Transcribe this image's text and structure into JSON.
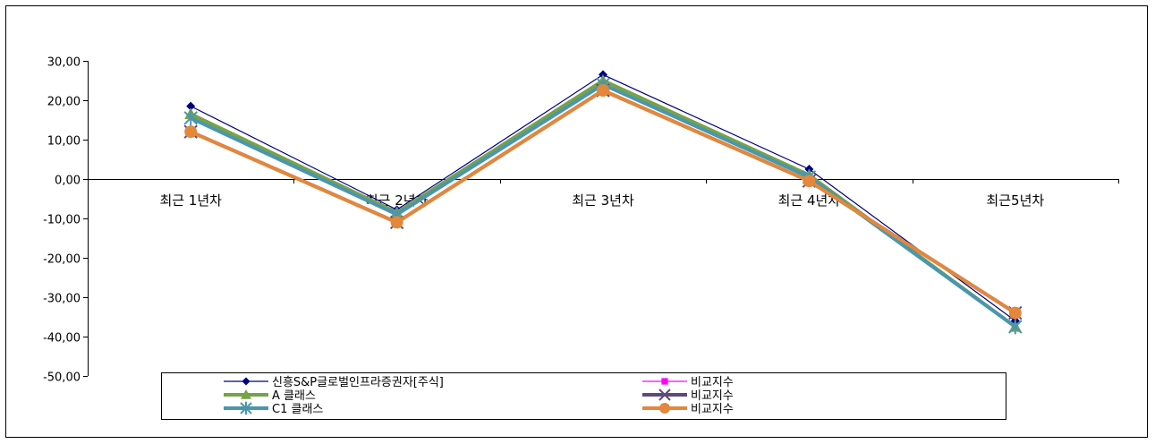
{
  "chart_data": {
    "type": "line",
    "categories": [
      "최근 1년차",
      "최근 2년차",
      "최근 3년차",
      "최근 4년차",
      "최근5년차"
    ],
    "ylim": [
      -50,
      30
    ],
    "yticks": [
      30,
      20,
      10,
      0,
      -10,
      -20,
      -30,
      -40,
      -50
    ],
    "ytick_labels": [
      "30,00",
      "20,00",
      "10,00",
      "0,00",
      "-10,00",
      "-20,00",
      "-30,00",
      "-40,00",
      "-50,00"
    ],
    "grid": false,
    "legend_position": "bottom",
    "series": [
      {
        "name": "신흥S&P글로벌인프라증권자[주식]",
        "color": "#000080",
        "marker": "diamond",
        "width": 1.2,
        "values": [
          18.5,
          -7.8,
          26.5,
          2.5,
          -36.0
        ]
      },
      {
        "name": "비교지수",
        "color": "#ff00ff",
        "marker": "square",
        "width": 1.2,
        "values": [
          12.0,
          -11.0,
          22.5,
          -0.5,
          -34.0
        ]
      },
      {
        "name": "A 클래스",
        "color": "#77a347",
        "marker": "triangle",
        "width": 4,
        "values": [
          16.5,
          -8.5,
          25.0,
          1.0,
          -37.5
        ]
      },
      {
        "name": "비교지수",
        "color": "#604a7b",
        "marker": "x",
        "width": 4,
        "values": [
          12.0,
          -11.0,
          22.5,
          -0.5,
          -34.0
        ]
      },
      {
        "name": "C1 클래스",
        "color": "#4a96ad",
        "marker": "star",
        "width": 4,
        "values": [
          15.5,
          -9.0,
          24.0,
          0.5,
          -37.5
        ]
      },
      {
        "name": "비교지수",
        "color": "#e3873b",
        "marker": "circle",
        "width": 4,
        "values": [
          12.0,
          -11.0,
          22.5,
          -0.5,
          -34.0
        ]
      }
    ]
  }
}
